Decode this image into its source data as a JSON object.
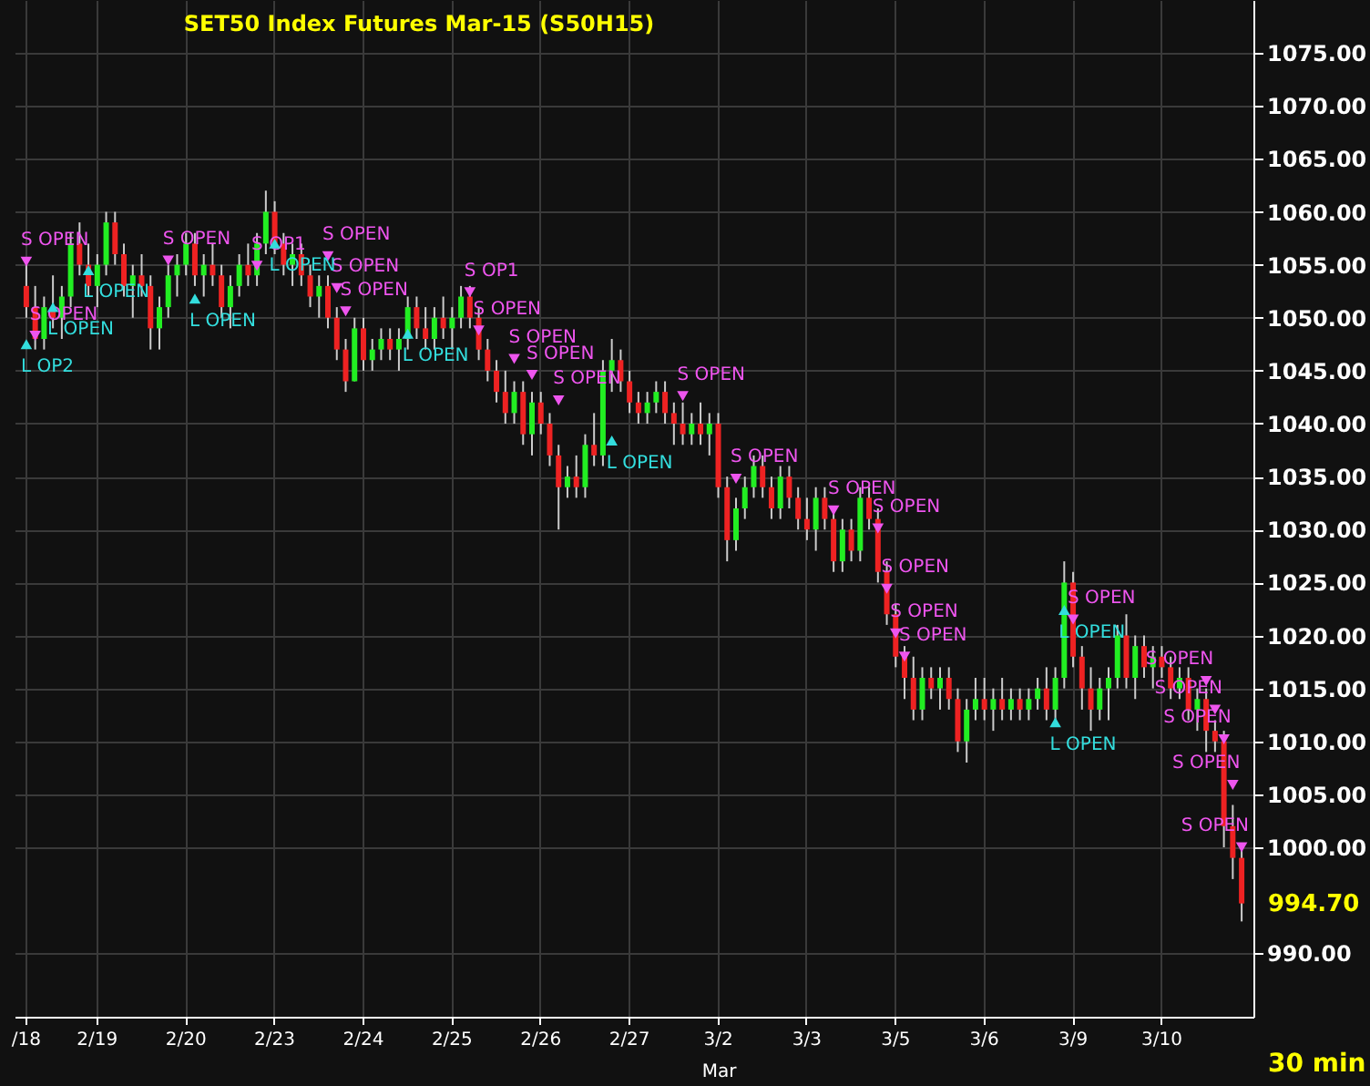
{
  "chart_data": {
    "type": "candlestick",
    "title": "SET50  Index  Futures  Mar-15   (S50H15)",
    "categories": [
      "/18",
      null,
      null,
      null,
      null,
      null,
      null,
      null,
      "2/19",
      null,
      null,
      null,
      null,
      null,
      null,
      null,
      null,
      null,
      "2/20",
      null,
      null,
      null,
      null,
      null,
      null,
      null,
      null,
      null,
      "2/23",
      null,
      null,
      null,
      null,
      null,
      null,
      null,
      null,
      null,
      "2/24",
      null,
      null,
      null,
      null,
      null,
      null,
      null,
      null,
      null,
      "2/25",
      null,
      null,
      null,
      null,
      null,
      null,
      null,
      null,
      null,
      "2/26",
      null,
      null,
      null,
      null,
      null,
      null,
      null,
      null,
      null,
      "2/27",
      null,
      null,
      null,
      null,
      null,
      null,
      null,
      null,
      null,
      "3/2",
      null,
      null,
      null,
      null,
      null,
      null,
      null,
      null,
      null,
      "3/3",
      null,
      null,
      null,
      null,
      null,
      null,
      null,
      null,
      null,
      "3/5",
      null,
      null,
      null,
      null,
      null,
      null,
      null,
      null,
      null,
      "3/6",
      null,
      null,
      null,
      null,
      null,
      null,
      null,
      null,
      null,
      "3/9",
      null,
      null,
      null,
      null,
      null,
      null,
      null,
      null,
      null,
      "3/10",
      null,
      null,
      null,
      null,
      null,
      null,
      null,
      null,
      null
    ],
    "ohlc": [
      [
        1053,
        1055,
        1050,
        1051
      ],
      [
        1051,
        1053,
        1047,
        1048
      ],
      [
        1048,
        1052,
        1047,
        1051
      ],
      [
        1051,
        1054,
        1049,
        1050
      ],
      [
        1050,
        1053,
        1048,
        1052
      ],
      [
        1052,
        1058,
        1051,
        1057
      ],
      [
        1057,
        1059,
        1054,
        1055
      ],
      [
        1055,
        1057,
        1052,
        1053
      ],
      [
        1053,
        1056,
        1051,
        1055
      ],
      [
        1055,
        1060,
        1054,
        1059
      ],
      [
        1059,
        1060,
        1055,
        1056
      ],
      [
        1056,
        1057,
        1052,
        1053
      ],
      [
        1053,
        1055,
        1050,
        1054
      ],
      [
        1054,
        1056,
        1052,
        1053
      ],
      [
        1053,
        1054,
        1047,
        1049
      ],
      [
        1049,
        1052,
        1047,
        1051
      ],
      [
        1051,
        1055,
        1050,
        1054
      ],
      [
        1054,
        1056,
        1052,
        1055
      ],
      [
        1055,
        1058,
        1054,
        1057
      ],
      [
        1057,
        1058,
        1053,
        1054
      ],
      [
        1054,
        1056,
        1052,
        1055
      ],
      [
        1055,
        1057,
        1053,
        1054
      ],
      [
        1054,
        1055,
        1050,
        1051
      ],
      [
        1051,
        1054,
        1049,
        1053
      ],
      [
        1053,
        1056,
        1052,
        1055
      ],
      [
        1055,
        1057,
        1053,
        1054
      ],
      [
        1054,
        1058,
        1053,
        1057
      ],
      [
        1057,
        1062,
        1056,
        1060
      ],
      [
        1060,
        1061,
        1056,
        1057
      ],
      [
        1057,
        1058,
        1054,
        1055
      ],
      [
        1055,
        1057,
        1053,
        1056
      ],
      [
        1056,
        1057,
        1053,
        1054
      ],
      [
        1054,
        1055,
        1051,
        1052
      ],
      [
        1052,
        1054,
        1050,
        1053
      ],
      [
        1053,
        1054,
        1049,
        1050
      ],
      [
        1050,
        1051,
        1046,
        1047
      ],
      [
        1047,
        1048,
        1043,
        1044
      ],
      [
        1044,
        1050,
        1044,
        1049
      ],
      [
        1049,
        1050,
        1045,
        1046
      ],
      [
        1046,
        1048,
        1045,
        1047
      ],
      [
        1047,
        1049,
        1046,
        1048
      ],
      [
        1048,
        1049,
        1046,
        1047
      ],
      [
        1047,
        1049,
        1045,
        1048
      ],
      [
        1048,
        1052,
        1047,
        1051
      ],
      [
        1051,
        1052,
        1048,
        1049
      ],
      [
        1049,
        1051,
        1047,
        1048
      ],
      [
        1048,
        1051,
        1047,
        1050
      ],
      [
        1050,
        1052,
        1048,
        1049
      ],
      [
        1049,
        1051,
        1047,
        1050
      ],
      [
        1050,
        1053,
        1049,
        1052
      ],
      [
        1052,
        1053,
        1049,
        1050
      ],
      [
        1050,
        1051,
        1046,
        1047
      ],
      [
        1047,
        1048,
        1044,
        1045
      ],
      [
        1045,
        1046,
        1042,
        1043
      ],
      [
        1043,
        1045,
        1040,
        1041
      ],
      [
        1041,
        1044,
        1040,
        1043
      ],
      [
        1043,
        1044,
        1038,
        1039
      ],
      [
        1039,
        1043,
        1037,
        1042
      ],
      [
        1042,
        1043,
        1039,
        1040
      ],
      [
        1040,
        1041,
        1036,
        1037
      ],
      [
        1037,
        1038,
        1030,
        1034
      ],
      [
        1034,
        1036,
        1033,
        1035
      ],
      [
        1035,
        1037,
        1033,
        1034
      ],
      [
        1034,
        1039,
        1033,
        1038
      ],
      [
        1038,
        1041,
        1036,
        1037
      ],
      [
        1037,
        1046,
        1036,
        1045
      ],
      [
        1045,
        1048,
        1043,
        1046
      ],
      [
        1046,
        1047,
        1043,
        1044
      ],
      [
        1044,
        1045,
        1041,
        1042
      ],
      [
        1042,
        1043,
        1040,
        1041
      ],
      [
        1041,
        1043,
        1040,
        1042
      ],
      [
        1042,
        1044,
        1041,
        1043
      ],
      [
        1043,
        1044,
        1040,
        1041
      ],
      [
        1041,
        1042,
        1038,
        1040
      ],
      [
        1040,
        1042,
        1038,
        1039
      ],
      [
        1039,
        1041,
        1038,
        1040
      ],
      [
        1040,
        1042,
        1038,
        1039
      ],
      [
        1039,
        1041,
        1037,
        1040
      ],
      [
        1040,
        1041,
        1033,
        1034
      ],
      [
        1034,
        1035,
        1027,
        1029
      ],
      [
        1029,
        1033,
        1028,
        1032
      ],
      [
        1032,
        1035,
        1031,
        1034
      ],
      [
        1034,
        1037,
        1033,
        1036
      ],
      [
        1036,
        1037,
        1033,
        1034
      ],
      [
        1034,
        1035,
        1031,
        1032
      ],
      [
        1032,
        1036,
        1031,
        1035
      ],
      [
        1035,
        1036,
        1032,
        1033
      ],
      [
        1033,
        1034,
        1030,
        1031
      ],
      [
        1031,
        1033,
        1029,
        1030
      ],
      [
        1030,
        1034,
        1028,
        1033
      ],
      [
        1033,
        1034,
        1030,
        1031
      ],
      [
        1031,
        1032,
        1026,
        1027
      ],
      [
        1027,
        1031,
        1026,
        1030
      ],
      [
        1030,
        1031,
        1027,
        1028
      ],
      [
        1028,
        1034,
        1027,
        1033
      ],
      [
        1033,
        1034,
        1030,
        1031
      ],
      [
        1031,
        1032,
        1025,
        1026
      ],
      [
        1026,
        1027,
        1021,
        1022
      ],
      [
        1022,
        1023,
        1017,
        1018
      ],
      [
        1018,
        1019,
        1014,
        1016
      ],
      [
        1016,
        1018,
        1012,
        1013
      ],
      [
        1013,
        1017,
        1012,
        1016
      ],
      [
        1016,
        1017,
        1014,
        1015
      ],
      [
        1015,
        1017,
        1013,
        1016
      ],
      [
        1016,
        1017,
        1013,
        1014
      ],
      [
        1014,
        1015,
        1009,
        1010
      ],
      [
        1010,
        1014,
        1008,
        1013
      ],
      [
        1013,
        1016,
        1012,
        1014
      ],
      [
        1014,
        1016,
        1012,
        1013
      ],
      [
        1013,
        1015,
        1011,
        1014
      ],
      [
        1014,
        1016,
        1012,
        1013
      ],
      [
        1013,
        1015,
        1012,
        1014
      ],
      [
        1014,
        1015,
        1012,
        1013
      ],
      [
        1013,
        1015,
        1012,
        1014
      ],
      [
        1014,
        1016,
        1013,
        1015
      ],
      [
        1015,
        1017,
        1012,
        1013
      ],
      [
        1013,
        1017,
        1012,
        1016
      ],
      [
        1016,
        1027,
        1015,
        1025
      ],
      [
        1025,
        1026,
        1017,
        1018
      ],
      [
        1018,
        1019,
        1013,
        1015
      ],
      [
        1015,
        1017,
        1011,
        1013
      ],
      [
        1013,
        1016,
        1012,
        1015
      ],
      [
        1015,
        1017,
        1012,
        1016
      ],
      [
        1016,
        1021,
        1015,
        1020
      ],
      [
        1020,
        1022,
        1015,
        1016
      ],
      [
        1016,
        1020,
        1014,
        1019
      ],
      [
        1019,
        1020,
        1016,
        1017
      ],
      [
        1017,
        1019,
        1015,
        1018
      ],
      [
        1018,
        1019,
        1016,
        1017
      ],
      [
        1017,
        1018,
        1014,
        1015
      ],
      [
        1015,
        1017,
        1014,
        1016
      ],
      [
        1016,
        1017,
        1012,
        1013
      ],
      [
        1013,
        1015,
        1011,
        1014
      ],
      [
        1014,
        1015,
        1009,
        1011
      ],
      [
        1011,
        1012,
        1009,
        1010
      ],
      [
        1010,
        1011,
        1000,
        1002
      ],
      [
        1002,
        1004,
        997,
        999
      ],
      [
        999,
        1000,
        993,
        994.7
      ]
    ],
    "series": [
      {
        "type": "scatter",
        "color": "#ee55ee",
        "marker": "triangle",
        "values": [
          1055.3,
          1048.3,
          null,
          null,
          null,
          null,
          null,
          null,
          null,
          null,
          null,
          null,
          null,
          null,
          null,
          null,
          1055.4,
          null,
          null,
          null,
          null,
          null,
          null,
          null,
          null,
          null,
          1054.9,
          null,
          null,
          null,
          null,
          null,
          null,
          null,
          1055.8,
          1052.8,
          1050.6,
          null,
          null,
          null,
          null,
          null,
          null,
          null,
          null,
          null,
          null,
          null,
          null,
          null,
          1052.4,
          1048.8,
          null,
          null,
          null,
          1046.1,
          null,
          1044.6,
          null,
          null,
          1042.2,
          null,
          null,
          null,
          null,
          null,
          null,
          null,
          null,
          null,
          null,
          null,
          null,
          null,
          1042.6,
          null,
          null,
          null,
          null,
          null,
          1034.8,
          null,
          null,
          null,
          null,
          null,
          null,
          null,
          null,
          null,
          null,
          1031.8,
          null,
          null,
          null,
          null,
          1030.1,
          1024.4,
          1020.2,
          1018,
          null,
          null,
          null,
          null,
          null,
          null,
          null,
          null,
          null,
          null,
          null,
          null,
          null,
          null,
          null,
          null,
          null,
          null,
          1021.5,
          null,
          null,
          null,
          null,
          null,
          null,
          null,
          null,
          null,
          null,
          null,
          null,
          null,
          null,
          1015.7,
          1013,
          1010.2,
          1005.9,
          1000
        ],
        "value_labels": [
          "S OPEN",
          "S OPEN",
          null,
          null,
          null,
          null,
          null,
          null,
          null,
          null,
          null,
          null,
          null,
          null,
          null,
          null,
          "S OPEN",
          null,
          null,
          null,
          null,
          null,
          null,
          null,
          null,
          null,
          "S OP1",
          null,
          null,
          null,
          null,
          null,
          null,
          null,
          "S OPEN",
          "S OPEN",
          "S OPEN",
          null,
          null,
          null,
          null,
          null,
          null,
          null,
          null,
          null,
          null,
          null,
          null,
          null,
          "S OP1",
          "S OPEN",
          null,
          null,
          null,
          "S OPEN",
          null,
          "S OPEN",
          null,
          null,
          "S OPEN",
          null,
          null,
          null,
          null,
          null,
          null,
          null,
          null,
          null,
          null,
          null,
          null,
          null,
          "S OPEN",
          null,
          null,
          null,
          null,
          null,
          "S OPEN",
          null,
          null,
          null,
          null,
          null,
          null,
          null,
          null,
          null,
          null,
          "S OPEN",
          null,
          null,
          null,
          null,
          "S OPEN",
          "S OPEN",
          "S OPEN",
          "S OPEN",
          null,
          null,
          null,
          null,
          null,
          null,
          null,
          null,
          null,
          null,
          null,
          null,
          null,
          null,
          null,
          null,
          null,
          null,
          "S OPEN",
          null,
          null,
          null,
          null,
          null,
          null,
          null,
          null,
          null,
          null,
          null,
          null,
          null,
          null,
          "S OPEN",
          "S OPEN",
          "S OPEN",
          "S OPEN",
          "S OPEN"
        ]
      },
      {
        "type": "scatter",
        "color": "#33dddd",
        "marker": "triangle",
        "values": [
          1047.5,
          null,
          null,
          1051,
          null,
          null,
          null,
          1054.5,
          null,
          null,
          null,
          null,
          null,
          null,
          null,
          null,
          null,
          null,
          null,
          1051.8,
          null,
          null,
          null,
          null,
          null,
          null,
          null,
          null,
          1057,
          null,
          null,
          null,
          null,
          null,
          null,
          null,
          null,
          null,
          null,
          null,
          null,
          null,
          null,
          1048.5,
          null,
          null,
          null,
          null,
          null,
          null,
          null,
          null,
          null,
          null,
          null,
          null,
          null,
          null,
          null,
          null,
          null,
          null,
          null,
          null,
          null,
          null,
          1038.4,
          null,
          null,
          null,
          null,
          null,
          null,
          null,
          null,
          null,
          null,
          null,
          null,
          null,
          null,
          null,
          null,
          null,
          null,
          null,
          null,
          null,
          null,
          null,
          null,
          null,
          null,
          null,
          null,
          null,
          null,
          null,
          null,
          null,
          null,
          null,
          null,
          null,
          null,
          null,
          null,
          null,
          null,
          null,
          null,
          null,
          null,
          null,
          null,
          null,
          1011.8,
          1022.4,
          null,
          null,
          null,
          null,
          null,
          null,
          null,
          null,
          null,
          null,
          null,
          null,
          null,
          null,
          null,
          null,
          null,
          null,
          null,
          null
        ],
        "value_labels": [
          "L OP2",
          null,
          null,
          "L OPEN",
          null,
          null,
          null,
          "L OPEN",
          null,
          null,
          null,
          null,
          null,
          null,
          null,
          null,
          null,
          null,
          null,
          "L OPEN",
          null,
          null,
          null,
          null,
          null,
          null,
          null,
          null,
          "L OPEN",
          null,
          null,
          null,
          null,
          null,
          null,
          null,
          null,
          null,
          null,
          null,
          null,
          null,
          null,
          "L OPEN",
          null,
          null,
          null,
          null,
          null,
          null,
          null,
          null,
          null,
          null,
          null,
          null,
          null,
          null,
          null,
          null,
          null,
          null,
          null,
          null,
          null,
          null,
          "L OPEN",
          null,
          null,
          null,
          null,
          null,
          null,
          null,
          null,
          null,
          null,
          null,
          null,
          null,
          null,
          null,
          null,
          null,
          null,
          null,
          null,
          null,
          null,
          null,
          null,
          null,
          null,
          null,
          null,
          null,
          null,
          null,
          null,
          null,
          null,
          null,
          null,
          null,
          null,
          null,
          null,
          null,
          null,
          null,
          null,
          null,
          null,
          null,
          null,
          null,
          "L OPEN",
          "L OPEN",
          null,
          null,
          null,
          null,
          null,
          null,
          null,
          null,
          null,
          null,
          null,
          null,
          null,
          null,
          null,
          null,
          null,
          null,
          null,
          null
        ]
      }
    ],
    "ylim": [
      984,
      1080
    ],
    "yticks": [
      {
        "value": 990,
        "label": "990.00"
      },
      {
        "value": 1000,
        "label": "1000.00"
      },
      {
        "value": 1005,
        "label": "1005.00"
      },
      {
        "value": 1010,
        "label": "1010.00"
      },
      {
        "value": 1015,
        "label": "1015.00"
      },
      {
        "value": 1020,
        "label": "1020.00"
      },
      {
        "value": 1025,
        "label": "1025.00"
      },
      {
        "value": 1030,
        "label": "1030.00"
      },
      {
        "value": 1035,
        "label": "1035.00"
      },
      {
        "value": 1040,
        "label": "1040.00"
      },
      {
        "value": 1045,
        "label": "1045.00"
      },
      {
        "value": 1050,
        "label": "1050.00"
      },
      {
        "value": 1055,
        "label": "1055.00"
      },
      {
        "value": 1060,
        "label": "1060.00"
      },
      {
        "value": 1065,
        "label": "1065.00"
      },
      {
        "value": 1070,
        "label": "1070.00"
      },
      {
        "value": 1075,
        "label": "1075.00"
      }
    ],
    "grid": true,
    "annotations": [
      "994.70",
      "Mar",
      "30  min"
    ]
  }
}
